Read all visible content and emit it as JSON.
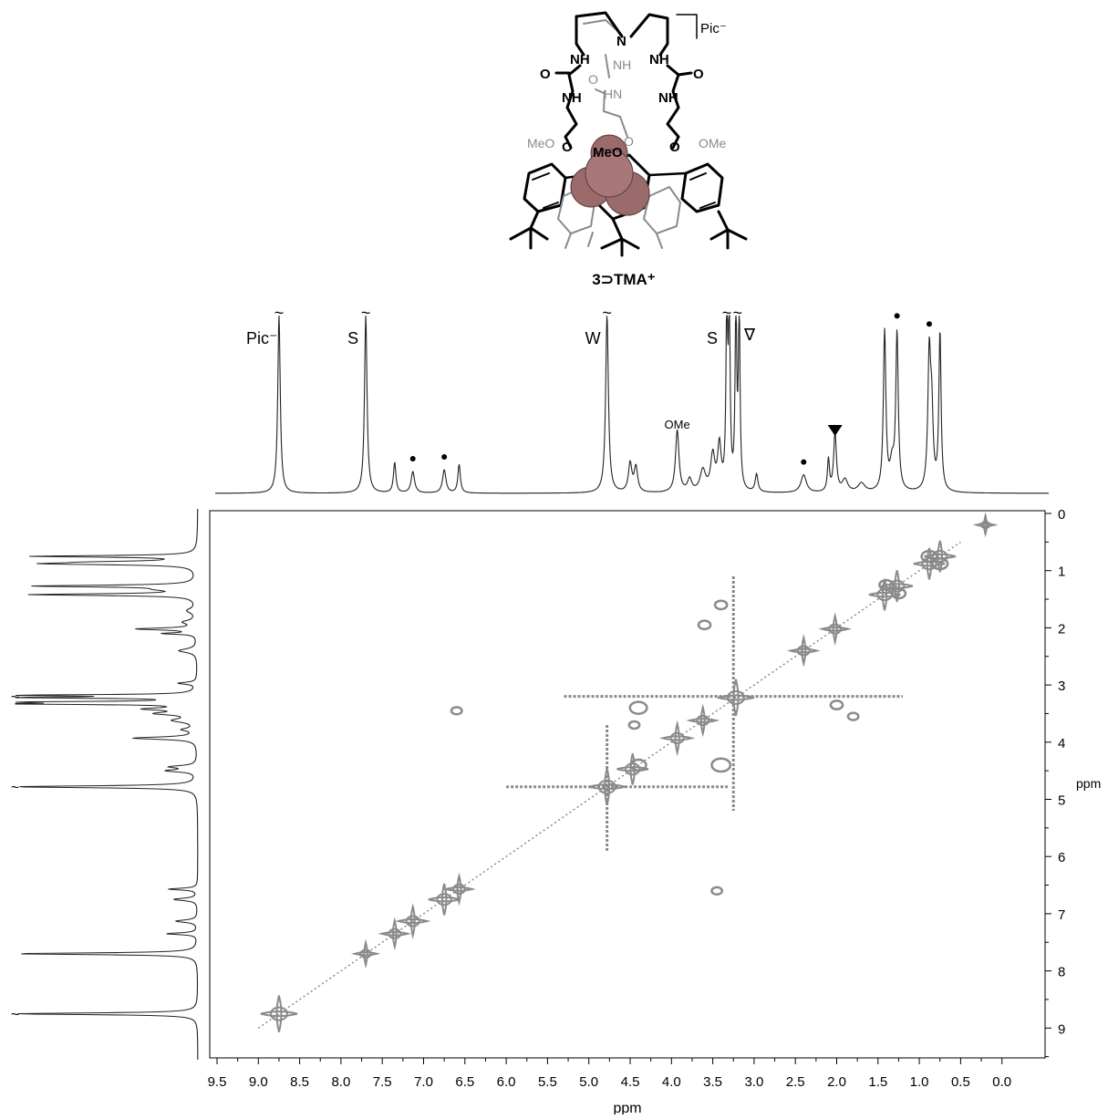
{
  "structure": {
    "compound_label": "3⊃TMA⁺",
    "counter_ion": "Pic⁻",
    "group_labels": [
      "NH",
      "NH",
      "NH",
      "NH",
      "NH",
      "HN",
      "N",
      "O",
      "O",
      "O",
      "O",
      "O",
      "O",
      "MeO",
      "MeO",
      "OMe"
    ]
  },
  "chart_data": {
    "type": "2D NMR spectrum",
    "xlabel": "ppm",
    "ylabel": "ppm",
    "xlim": [
      9.5,
      0.0
    ],
    "ylim": [
      0,
      9
    ],
    "x_ticks": [
      "9.5",
      "9.0",
      "8.5",
      "8.0",
      "7.5",
      "7.0",
      "6.5",
      "6.0",
      "5.5",
      "5.0",
      "4.5",
      "4.0",
      "3.5",
      "3.0",
      "2.5",
      "2.0",
      "1.5",
      "1.0",
      "0.5",
      "0.0"
    ],
    "y_ticks": [
      "0",
      "1",
      "2",
      "3",
      "4",
      "5",
      "6",
      "7",
      "8",
      "9"
    ],
    "peaks_1d": [
      {
        "ppm": 8.75,
        "height": 1.0,
        "width": 0.018
      },
      {
        "ppm": 7.7,
        "height": 1.0,
        "width": 0.018
      },
      {
        "ppm": 7.35,
        "height": 0.17,
        "width": 0.018
      },
      {
        "ppm": 7.13,
        "height": 0.12,
        "width": 0.025
      },
      {
        "ppm": 6.75,
        "height": 0.13,
        "width": 0.025
      },
      {
        "ppm": 6.57,
        "height": 0.16,
        "width": 0.018
      },
      {
        "ppm": 4.78,
        "height": 1.0,
        "width": 0.02
      },
      {
        "ppm": 4.5,
        "height": 0.16,
        "width": 0.025
      },
      {
        "ppm": 4.43,
        "height": 0.14,
        "width": 0.025
      },
      {
        "ppm": 3.93,
        "height": 0.35,
        "width": 0.025
      },
      {
        "ppm": 3.78,
        "height": 0.07,
        "width": 0.03
      },
      {
        "ppm": 3.62,
        "height": 0.12,
        "width": 0.04
      },
      {
        "ppm": 3.5,
        "height": 0.2,
        "width": 0.03
      },
      {
        "ppm": 3.42,
        "height": 0.25,
        "width": 0.025
      },
      {
        "ppm": 3.33,
        "height": 1.0,
        "width": 0.012
      },
      {
        "ppm": 3.3,
        "height": 1.0,
        "width": 0.012
      },
      {
        "ppm": 3.22,
        "height": 1.0,
        "width": 0.012
      },
      {
        "ppm": 3.18,
        "height": 1.0,
        "width": 0.012
      },
      {
        "ppm": 2.97,
        "height": 0.1,
        "width": 0.02
      },
      {
        "ppm": 2.4,
        "height": 0.1,
        "width": 0.04
      },
      {
        "ppm": 2.1,
        "height": 0.18,
        "width": 0.015
      },
      {
        "ppm": 2.02,
        "height": 0.33,
        "width": 0.02
      },
      {
        "ppm": 1.9,
        "height": 0.07,
        "width": 0.04
      },
      {
        "ppm": 1.7,
        "height": 0.05,
        "width": 0.05
      },
      {
        "ppm": 1.42,
        "height": 0.9,
        "width": 0.018
      },
      {
        "ppm": 1.33,
        "height": 0.14,
        "width": 0.03
      },
      {
        "ppm": 1.27,
        "height": 0.88,
        "width": 0.018
      },
      {
        "ppm": 0.88,
        "height": 0.74,
        "width": 0.02
      },
      {
        "ppm": 0.85,
        "height": 0.4,
        "width": 0.02
      },
      {
        "ppm": 0.75,
        "height": 0.89,
        "width": 0.016
      }
    ],
    "labels": [
      {
        "text": "Pic⁻",
        "ppm": 8.75
      },
      {
        "text": "S",
        "ppm": 7.7
      },
      {
        "text": "W",
        "ppm": 4.78
      },
      {
        "text": "S",
        "ppm": 3.33
      },
      {
        "text": "∇",
        "ppm": 3.12
      },
      {
        "text": "OMe",
        "ppm": 3.93
      }
    ],
    "dot_markers_ppm": [
      7.13,
      6.75,
      2.4,
      1.27,
      0.88
    ],
    "triangle_marker_ppm": 2.02,
    "break_marks_ppm": [
      8.75,
      7.7,
      4.78,
      3.33,
      3.2
    ],
    "diagonal_peaks": [
      {
        "x": 8.75,
        "y": 8.75,
        "size": 1.0
      },
      {
        "x": 7.7,
        "y": 7.7,
        "size": 0.45
      },
      {
        "x": 7.35,
        "y": 7.35,
        "size": 0.6
      },
      {
        "x": 7.13,
        "y": 7.13,
        "size": 0.7
      },
      {
        "x": 6.75,
        "y": 6.75,
        "size": 0.8
      },
      {
        "x": 6.57,
        "y": 6.57,
        "size": 0.6
      },
      {
        "x": 4.78,
        "y": 4.78,
        "size": 1.0
      },
      {
        "x": 4.47,
        "y": 4.47,
        "size": 0.8
      },
      {
        "x": 3.93,
        "y": 3.93,
        "size": 0.7
      },
      {
        "x": 3.62,
        "y": 3.62,
        "size": 0.6
      },
      {
        "x": 3.22,
        "y": 3.22,
        "size": 1.0
      },
      {
        "x": 2.4,
        "y": 2.4,
        "size": 0.6
      },
      {
        "x": 2.02,
        "y": 2.02,
        "size": 0.6
      },
      {
        "x": 1.42,
        "y": 1.42,
        "size": 0.8
      },
      {
        "x": 1.27,
        "y": 1.27,
        "size": 0.8
      },
      {
        "x": 0.88,
        "y": 0.88,
        "size": 0.8
      },
      {
        "x": 0.75,
        "y": 0.75,
        "size": 0.8
      },
      {
        "x": 0.2,
        "y": 0.2,
        "size": 0.3
      }
    ],
    "cross_peaks": [
      {
        "x": 4.4,
        "y": 3.4,
        "size": 0.7
      },
      {
        "x": 4.4,
        "y": 4.4,
        "size": 0.6
      },
      {
        "x": 3.4,
        "y": 4.4,
        "size": 0.8
      },
      {
        "x": 3.4,
        "y": 1.6,
        "size": 0.4
      },
      {
        "x": 3.6,
        "y": 1.95,
        "size": 0.4
      },
      {
        "x": 6.6,
        "y": 3.45,
        "size": 0.3
      },
      {
        "x": 3.45,
        "y": 6.6,
        "size": 0.3
      },
      {
        "x": 4.45,
        "y": 3.7,
        "size": 0.3
      },
      {
        "x": 2.0,
        "y": 3.35,
        "size": 0.4
      },
      {
        "x": 1.8,
        "y": 3.55,
        "size": 0.3
      },
      {
        "x": 1.4,
        "y": 1.25,
        "size": 0.5
      },
      {
        "x": 1.25,
        "y": 1.4,
        "size": 0.5
      },
      {
        "x": 0.88,
        "y": 0.75,
        "size": 0.6
      },
      {
        "x": 0.75,
        "y": 0.88,
        "size": 0.6
      }
    ],
    "ridges": [
      {
        "orient": "h",
        "ppm": 3.2,
        "from": 5.3,
        "to": 1.2
      },
      {
        "orient": "v",
        "ppm": 3.25,
        "from": 1.1,
        "to": 5.2
      },
      {
        "orient": "h",
        "ppm": 4.78,
        "from": 6.0,
        "to": 3.3
      },
      {
        "orient": "v",
        "ppm": 4.78,
        "from": 3.7,
        "to": 5.9
      }
    ]
  }
}
